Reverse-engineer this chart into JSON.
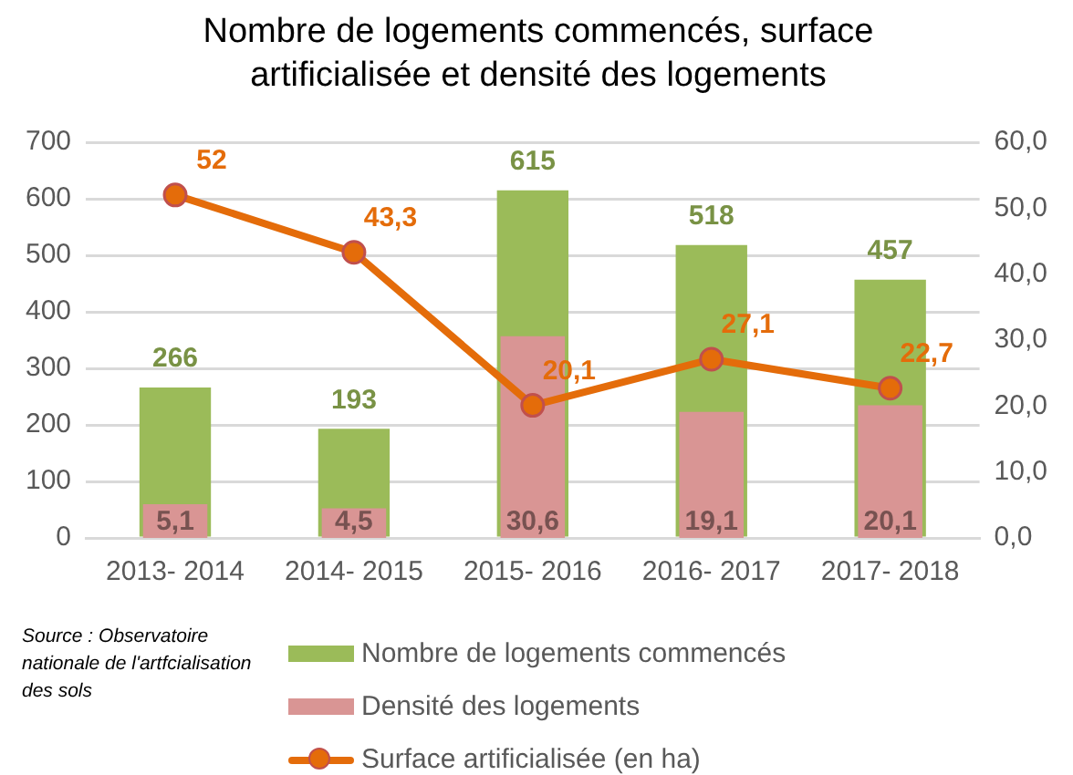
{
  "chart_data": {
    "type": "bar",
    "title": "Nombre de logements commencés, surface artificialisée et densité des logements",
    "categories": [
      "2013- 2014",
      "2014- 2015",
      "2015- 2016",
      "2016- 2017",
      "2017- 2018"
    ],
    "series": [
      {
        "name": "Nombre de logements commencés",
        "color": "#9bbb59",
        "values": [
          266,
          193,
          615,
          518,
          457
        ],
        "value_labels": [
          "266",
          "193",
          "615",
          "518",
          "457"
        ]
      },
      {
        "name": "Densité des logements",
        "axis": "y2",
        "color": "#d99594",
        "values": [
          5.1,
          4.5,
          30.6,
          19.1,
          20.1
        ],
        "value_labels": [
          "5,1",
          "4,5",
          "30,6",
          "19,1",
          "20,1"
        ]
      },
      {
        "name": "Surface artificialisée (en ha)",
        "type": "line",
        "axis": "y2",
        "color": "#e46c0a",
        "values": [
          52,
          43.3,
          20.1,
          27.1,
          22.7
        ],
        "value_labels": [
          "52",
          "43,3",
          "20,1",
          "27,1",
          "22,7"
        ]
      }
    ],
    "ylim": [
      0,
      700
    ],
    "yticks": [
      0,
      100,
      200,
      300,
      400,
      500,
      600,
      700
    ],
    "y2lim": [
      0,
      60
    ],
    "y2ticks": [
      {
        "value": 0,
        "label": "0,0"
      },
      {
        "value": 10,
        "label": "10,0"
      },
      {
        "value": 20,
        "label": "20,0"
      },
      {
        "value": 30,
        "label": "30,0"
      },
      {
        "value": 40,
        "label": "40,0"
      },
      {
        "value": 50,
        "label": "50,0"
      },
      {
        "value": 60,
        "label": "60,0"
      }
    ],
    "grid": "y",
    "legend": "bottom",
    "marker": "circle",
    "line_style": "solid",
    "annotations": [
      "Source : Observatoire nationale de l'artfcialisation des sols"
    ]
  }
}
